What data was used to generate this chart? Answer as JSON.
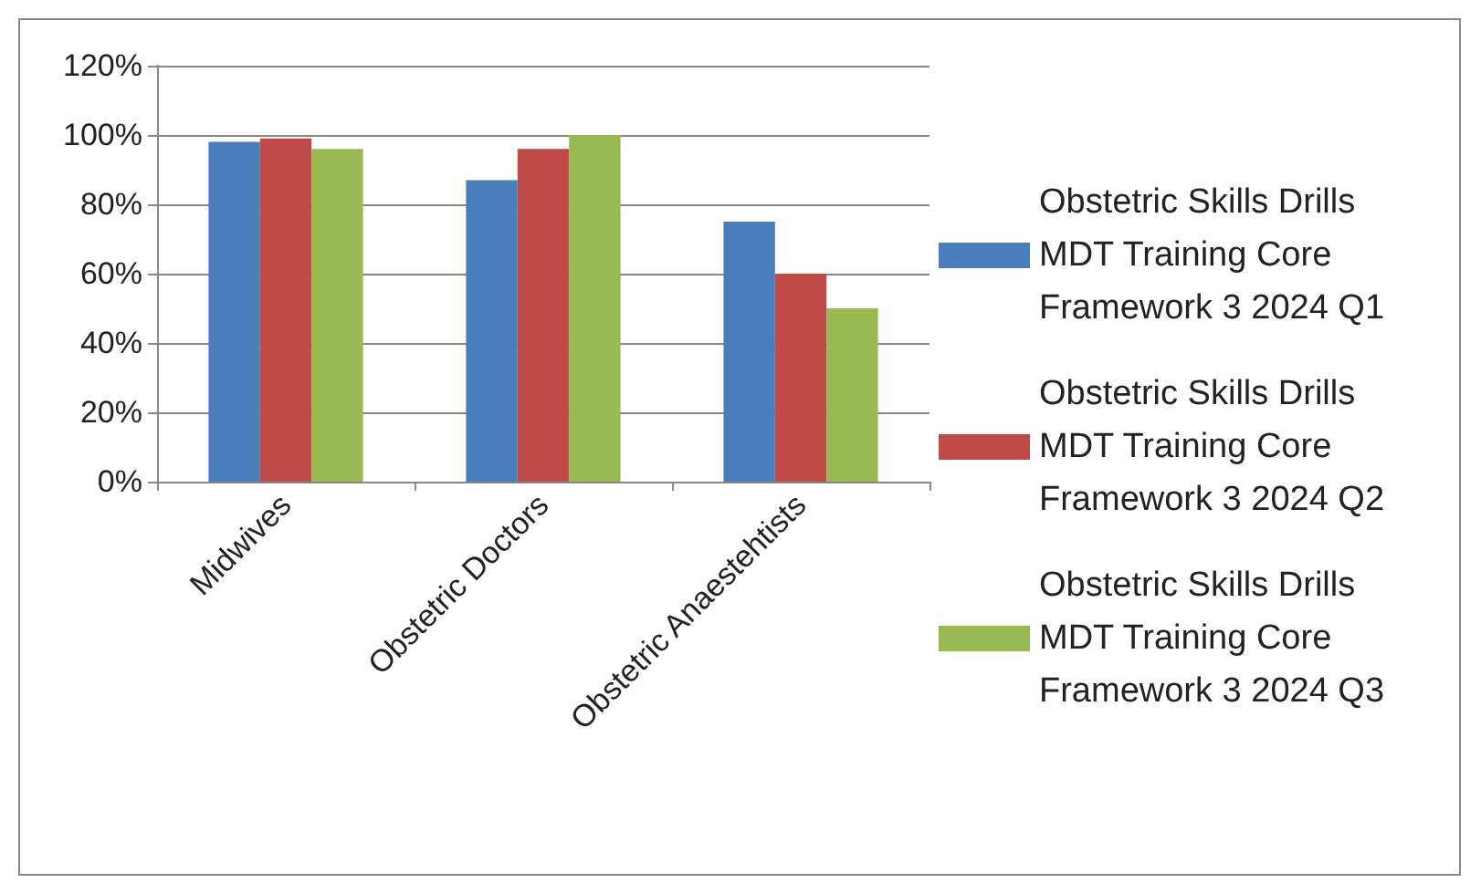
{
  "chart_data": {
    "type": "bar",
    "categories": [
      "Midwives",
      "Obstetric Doctors",
      "Obstetric Anaestehtists"
    ],
    "series": [
      {
        "name": "Obstetric Skills Drills MDT Training Core Framework 3 2024 Q1",
        "color": "#4a7ebb",
        "values": [
          98,
          87,
          75
        ]
      },
      {
        "name": "Obstetric Skills Drills MDT Training Core Framework 3 2024 Q2",
        "color": "#be4b48",
        "values": [
          99,
          96,
          60
        ]
      },
      {
        "name": "Obstetric Skills Drills MDT Training Core Framework 3 2024 Q3",
        "color": "#98b954",
        "values": [
          96,
          100,
          50
        ]
      }
    ],
    "ylim": [
      0,
      120
    ],
    "yticks": [
      {
        "value": 0,
        "label": "0%"
      },
      {
        "value": 20,
        "label": "20%"
      },
      {
        "value": 40,
        "label": "40%"
      },
      {
        "value": 60,
        "label": "60%"
      },
      {
        "value": 80,
        "label": "80%"
      },
      {
        "value": 100,
        "label": "100%"
      },
      {
        "value": 120,
        "label": "120%"
      }
    ],
    "grid": "y",
    "legend": "right"
  }
}
